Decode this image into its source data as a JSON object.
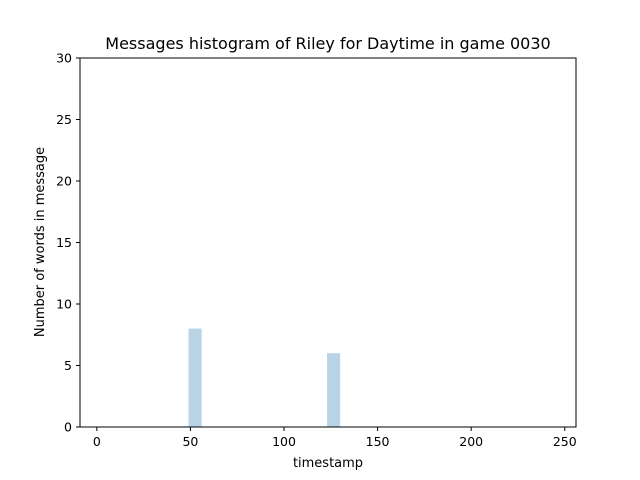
{
  "chart_data": {
    "type": "bar",
    "title": "Messages histogram of Riley for Daytime in game 0030",
    "xlabel": "timestamp",
    "ylabel": "Number of words in message",
    "xlim": [
      -9,
      256
    ],
    "ylim": [
      0,
      30
    ],
    "x_ticks": [
      0,
      50,
      100,
      150,
      200,
      250
    ],
    "y_ticks": [
      0,
      5,
      10,
      15,
      20,
      25,
      30
    ],
    "bar_width": 7,
    "bar_color": "#b8d4e6",
    "grid": false,
    "legend": "none",
    "bars": [
      {
        "x": 52.5,
        "value": 8
      },
      {
        "x": 126.5,
        "value": 6
      }
    ]
  }
}
